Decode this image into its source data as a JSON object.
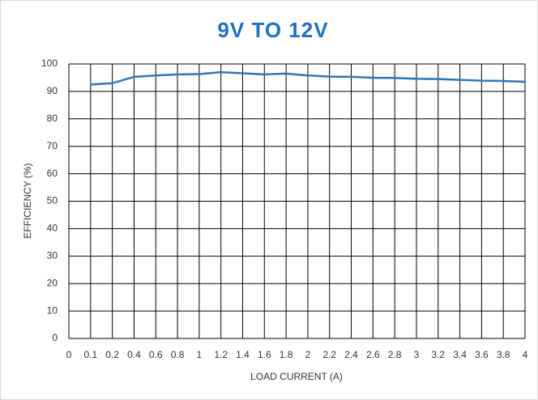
{
  "chart_data": {
    "type": "line",
    "title": "9V TO 12V",
    "x_label": "LOAD CURRENT (A)",
    "y_label": "EFFICIENCY (%)",
    "categories": [
      "0",
      "0.1",
      "0.2",
      "0.4",
      "0.6",
      "0.8",
      "1",
      "1.2",
      "1.4",
      "1.6",
      "1.8",
      "2",
      "2.2",
      "2.4",
      "2.6",
      "2.8",
      "3",
      "3.2",
      "3.4",
      "3.6",
      "3.8",
      "4"
    ],
    "series": [
      {
        "name": "Efficiency",
        "color": "#2e75b6",
        "values": [
          null,
          92.5,
          93,
          95.3,
          95.8,
          96.2,
          96.3,
          97,
          96.6,
          96.2,
          96.5,
          95.8,
          95.4,
          95.3,
          95,
          94.9,
          94.6,
          94.5,
          94.2,
          93.9,
          93.8,
          93.5
        ]
      }
    ],
    "ylim": [
      0,
      100
    ],
    "yticks": [
      0,
      10,
      20,
      30,
      40,
      50,
      60,
      70,
      80,
      90,
      100
    ],
    "grid": true
  }
}
